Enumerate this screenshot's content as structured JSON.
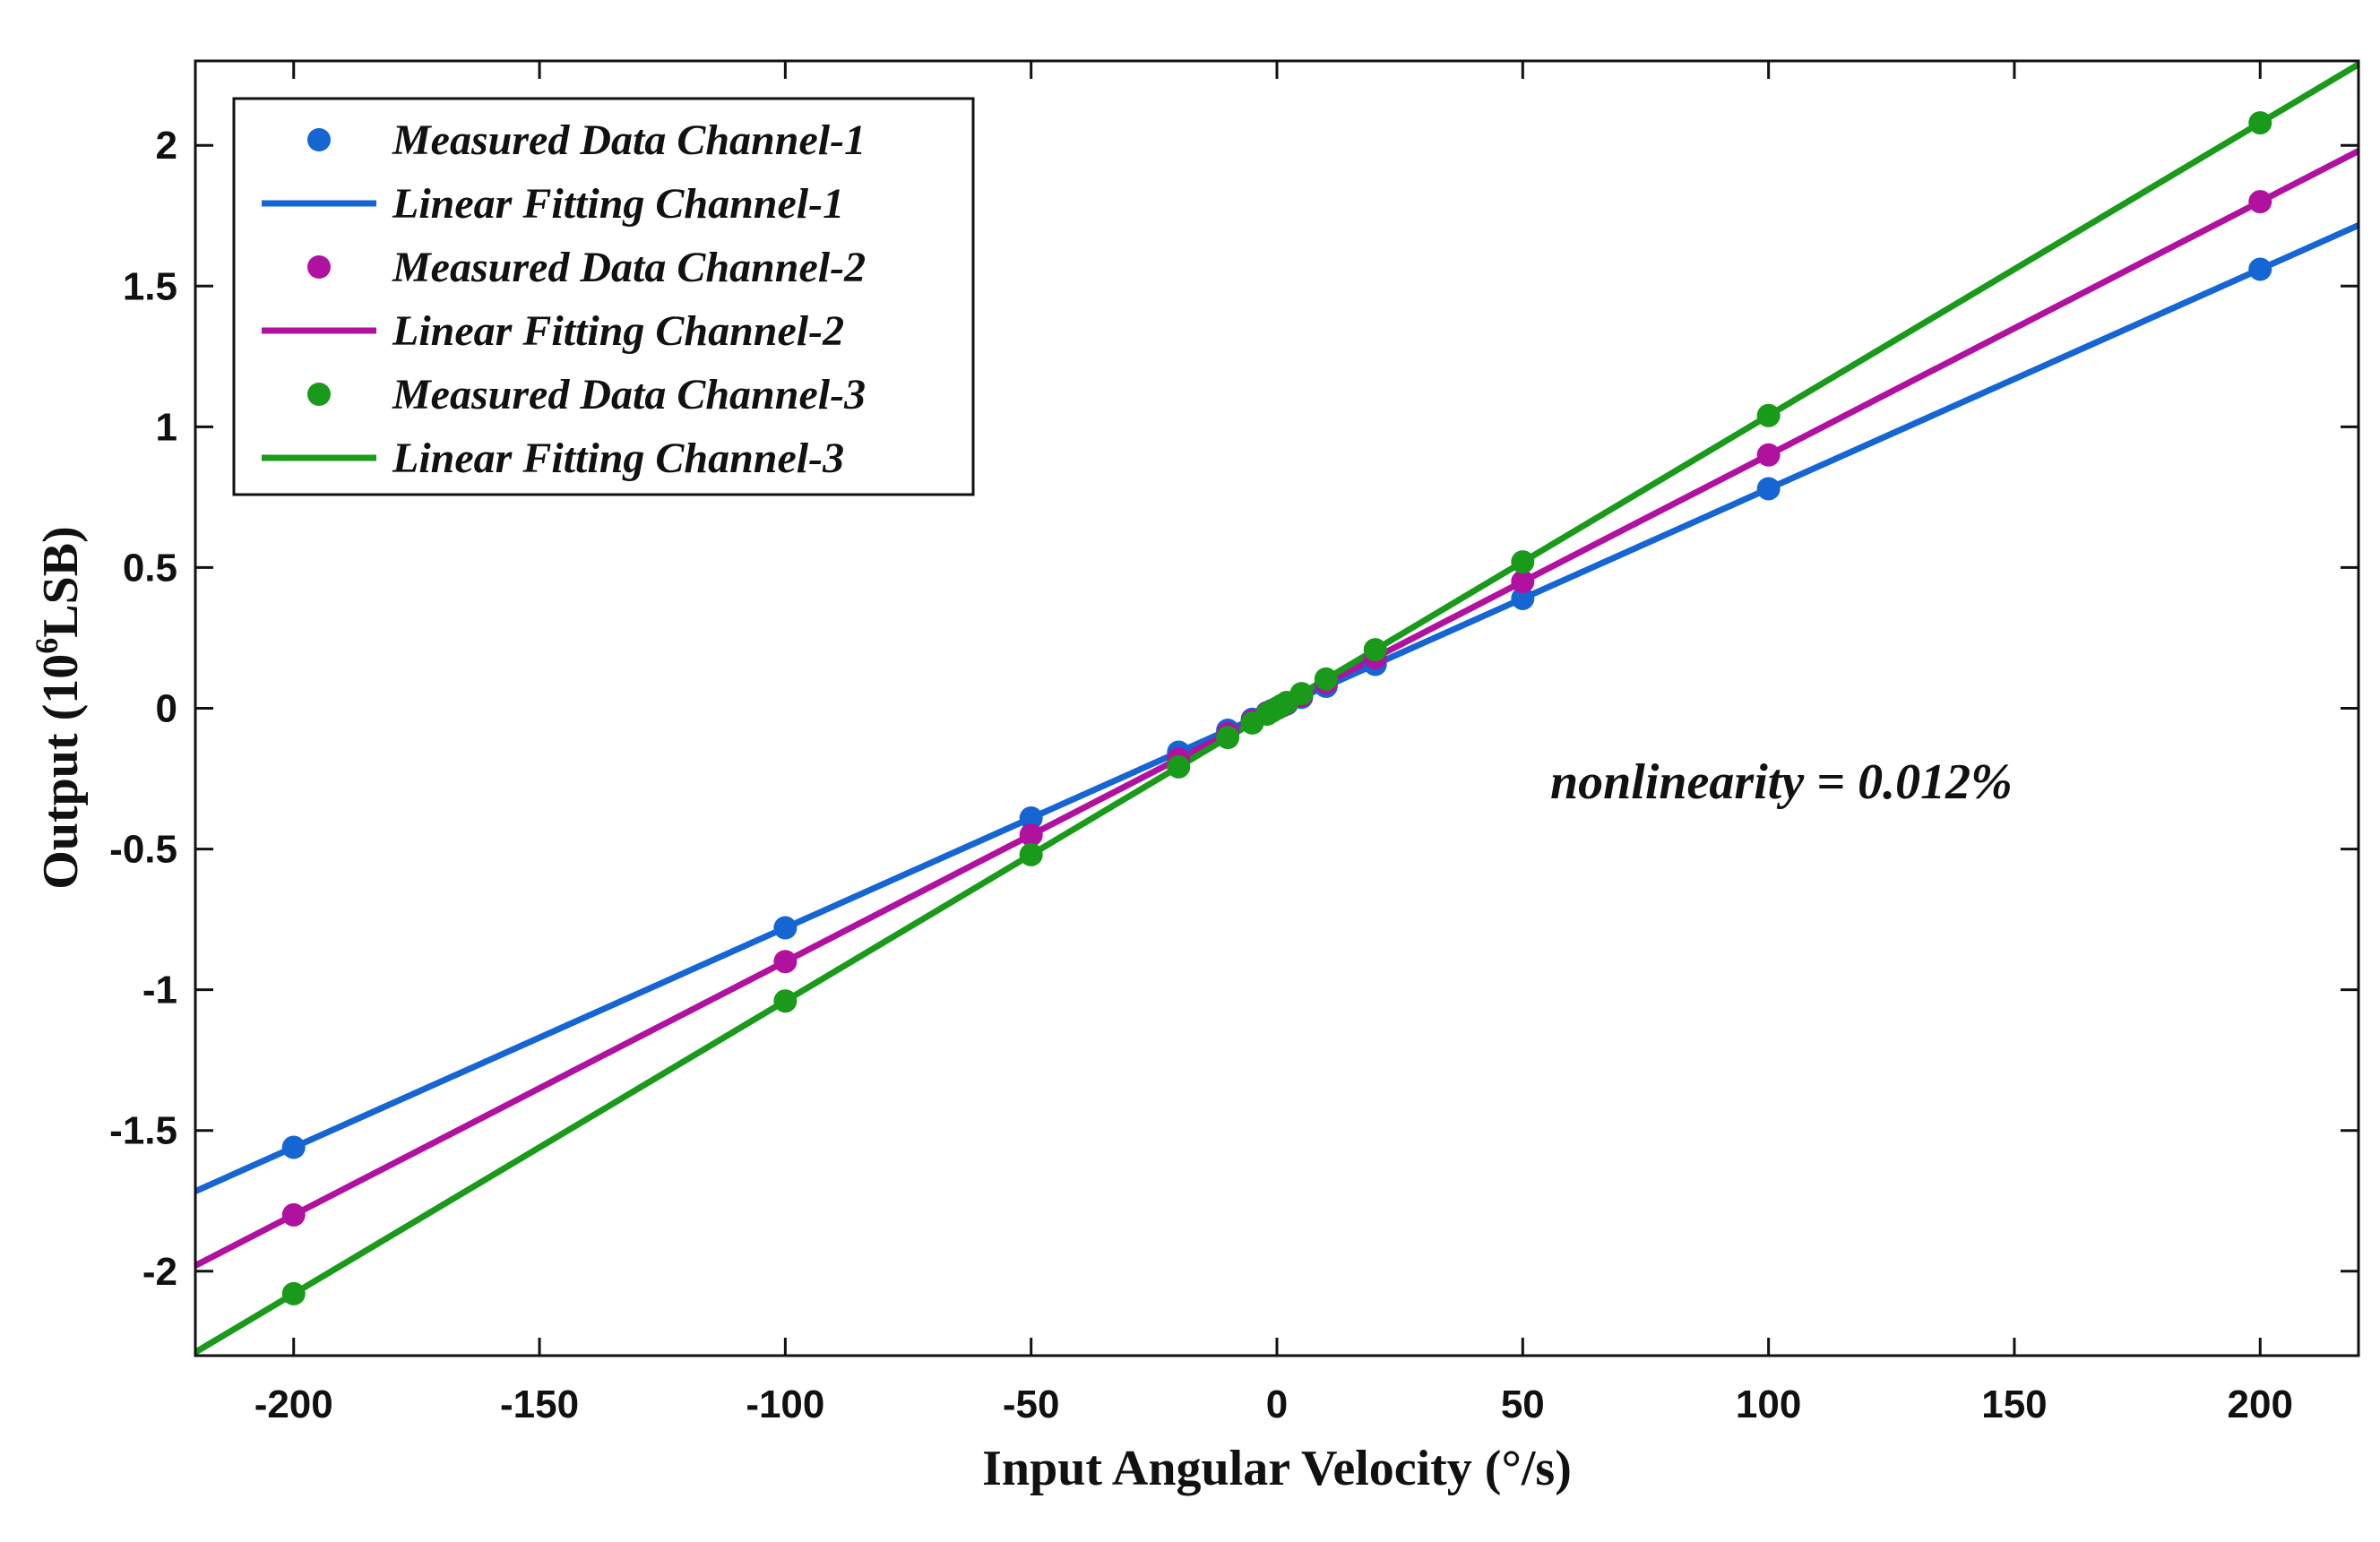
{
  "chart_data": {
    "type": "scatter",
    "xlabel": "Input Angular Velocity (°/s)",
    "ylabel_parts": {
      "prefix": "Output (10",
      "sup": "6",
      "suffix": "LSB)"
    },
    "xlim": [
      -220,
      220
    ],
    "ylim": [
      -2.3,
      2.3
    ],
    "xticks": [
      -200,
      -150,
      -100,
      -50,
      0,
      50,
      100,
      150,
      200
    ],
    "xtick_labels": [
      "-200",
      "-150",
      "-100",
      "-50",
      "0",
      "50",
      "100",
      "150",
      "200"
    ],
    "yticks": [
      -2,
      -1.5,
      -1,
      -0.5,
      0,
      0.5,
      1,
      1.5,
      2
    ],
    "ytick_labels": [
      "-2",
      "-1.5",
      "-1",
      "-0.5",
      "0",
      "0.5",
      "1",
      "1.5",
      "2"
    ],
    "annotation": "nonlinearity = 0.012%",
    "legend_position": "top-left",
    "x": [
      -200,
      -100,
      -50,
      -20,
      -10,
      -5,
      -2,
      -1,
      0,
      1,
      2,
      5,
      10,
      20,
      50,
      100,
      200
    ],
    "series": [
      {
        "name": "Channel-1",
        "measured_label": "Measured Data Channel-1",
        "fit_label": "Linear Fitting Channel-1",
        "color": "#1565d2",
        "slope": 0.0078,
        "values": [
          -1.56,
          -0.78,
          -0.39,
          -0.156,
          -0.078,
          -0.039,
          -0.0156,
          -0.0078,
          0,
          0.0078,
          0.0156,
          0.039,
          0.078,
          0.156,
          0.39,
          0.78,
          1.56
        ]
      },
      {
        "name": "Channel-2",
        "measured_label": "Measured Data Channel-2",
        "fit_label": "Linear Fitting Channel-2",
        "color": "#b0119f",
        "slope": 0.009,
        "values": [
          -1.8,
          -0.9,
          -0.45,
          -0.18,
          -0.09,
          -0.045,
          -0.018,
          -0.009,
          0,
          0.009,
          0.018,
          0.045,
          0.09,
          0.18,
          0.45,
          0.9,
          1.8
        ]
      },
      {
        "name": "Channel-3",
        "measured_label": "Measured Data Channel-3",
        "fit_label": "Linear Fitting Channel-3",
        "color": "#1a9a1a",
        "slope": 0.0104,
        "values": [
          -2.08,
          -1.04,
          -0.52,
          -0.208,
          -0.104,
          -0.052,
          -0.0208,
          -0.0104,
          0,
          0.0104,
          0.0208,
          0.052,
          0.104,
          0.208,
          0.52,
          1.04,
          2.08
        ]
      }
    ]
  }
}
